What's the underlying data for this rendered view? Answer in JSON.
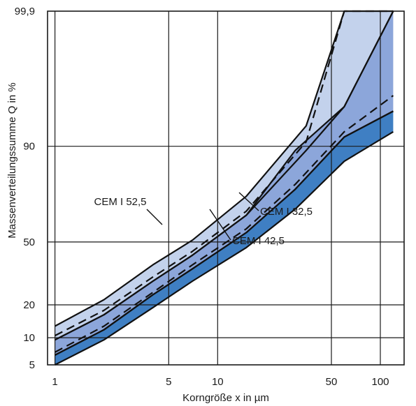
{
  "chart_data": {
    "type": "area",
    "xlabel": "Korngröße x in µm",
    "ylabel": "Massenverteilungssumme Q in %",
    "x_scale": "log",
    "y_scale": "probability",
    "xlim": [
      0.9,
      140
    ],
    "ylim": [
      5,
      99.9
    ],
    "x_ticks": [
      1,
      5,
      10,
      50,
      100
    ],
    "y_ticks": [
      5,
      10,
      20,
      50,
      90,
      99.9
    ],
    "x_tick_labels": [
      "1",
      "5",
      "10",
      "50",
      "100"
    ],
    "y_tick_labels": [
      "5",
      "10",
      "20",
      "50",
      "90",
      "99,9"
    ],
    "grid": true,
    "series": [
      {
        "name": "CEM I 52,5",
        "color": "#c3d2ec",
        "x": [
          1,
          2,
          4,
          7,
          15,
          35,
          60,
          120
        ],
        "upper": [
          13,
          22,
          38,
          51,
          73,
          94,
          99.9,
          99.9
        ],
        "lower": [
          9.5,
          16.5,
          30,
          43,
          64,
          89,
          96.5,
          99.9
        ]
      },
      {
        "name": "CEM I 42,5",
        "color": "#8ca6da",
        "x": [
          1,
          2,
          4,
          7,
          15,
          30,
          60,
          120
        ],
        "upper": [
          9.5,
          16.5,
          30,
          43,
          64,
          89,
          96.5,
          99.9
        ],
        "lower": [
          6.5,
          12,
          24,
          36,
          55,
          76,
          92,
          96
        ]
      },
      {
        "name": "CEM I 32,5",
        "color": "#3f7fc3",
        "x": [
          1,
          2,
          4,
          7,
          15,
          30,
          60,
          120
        ],
        "upper": [
          6.5,
          12,
          24,
          36,
          55,
          76,
          92,
          96
        ],
        "lower": [
          5,
          9.5,
          19,
          30,
          47,
          67,
          86,
          93
        ]
      }
    ],
    "dashed_lines": [
      {
        "x": [
          1,
          2,
          4,
          7,
          15,
          35,
          60,
          120
        ],
        "y": [
          10.5,
          18,
          32,
          45,
          66,
          91,
          99.9,
          99.9
        ]
      },
      {
        "x": [
          1,
          2,
          4,
          7,
          15,
          30,
          60,
          120
        ],
        "y": [
          7,
          13,
          25,
          38,
          57,
          78,
          93,
          97.5
        ]
      }
    ],
    "annotations": [
      {
        "text": "CEM I 52,5",
        "x": 4.2,
        "y": 40
      },
      {
        "text": "CEM I 32,5",
        "x": 21,
        "y": 57
      },
      {
        "text": "CEM I 42,5",
        "x": 15,
        "y": 46
      }
    ]
  }
}
